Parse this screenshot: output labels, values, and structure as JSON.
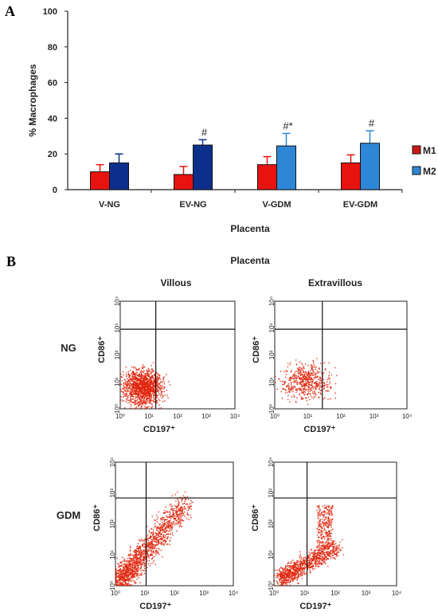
{
  "panelA": {
    "letter": "A",
    "chart_data": {
      "type": "bar",
      "title": "",
      "xlabel": "Placenta",
      "ylabel": "% Macrophages",
      "ylim": [
        0,
        100
      ],
      "yticks": [
        "0",
        "20",
        "40",
        "60",
        "80",
        "100"
      ],
      "categories": [
        "V-NG",
        "EV-NG",
        "V-GDM",
        "EV-GDM"
      ],
      "grid": false,
      "legend_position": "right",
      "series": [
        {
          "name": "M1",
          "color": "#e8130f",
          "values": [
            10,
            8.5,
            14,
            15
          ],
          "errors": [
            4,
            4.5,
            4.5,
            4.5
          ]
        },
        {
          "name": "M2",
          "color": "#0d2f8c",
          "values": [
            15,
            25,
            24.5,
            26
          ],
          "errors": [
            5,
            3,
            7,
            7
          ],
          "colors": [
            "#0d2f8c",
            "#0d2f8c",
            "#2e87d6",
            "#2e87d6"
          ]
        }
      ],
      "annotations": [
        "",
        "#",
        "#*",
        "#"
      ]
    }
  },
  "panelB": {
    "letter": "B",
    "title": "Placenta",
    "col_labels": [
      "Villous",
      "Extravillous"
    ],
    "row_labels": [
      "NG",
      "GDM"
    ],
    "xaxis_label": "CD197⁺",
    "yaxis_label": "CD86⁺",
    "tick_labels": [
      "10⁰",
      "10¹",
      "10²",
      "10³",
      "10⁴"
    ],
    "dot_color": "#e0280f"
  }
}
